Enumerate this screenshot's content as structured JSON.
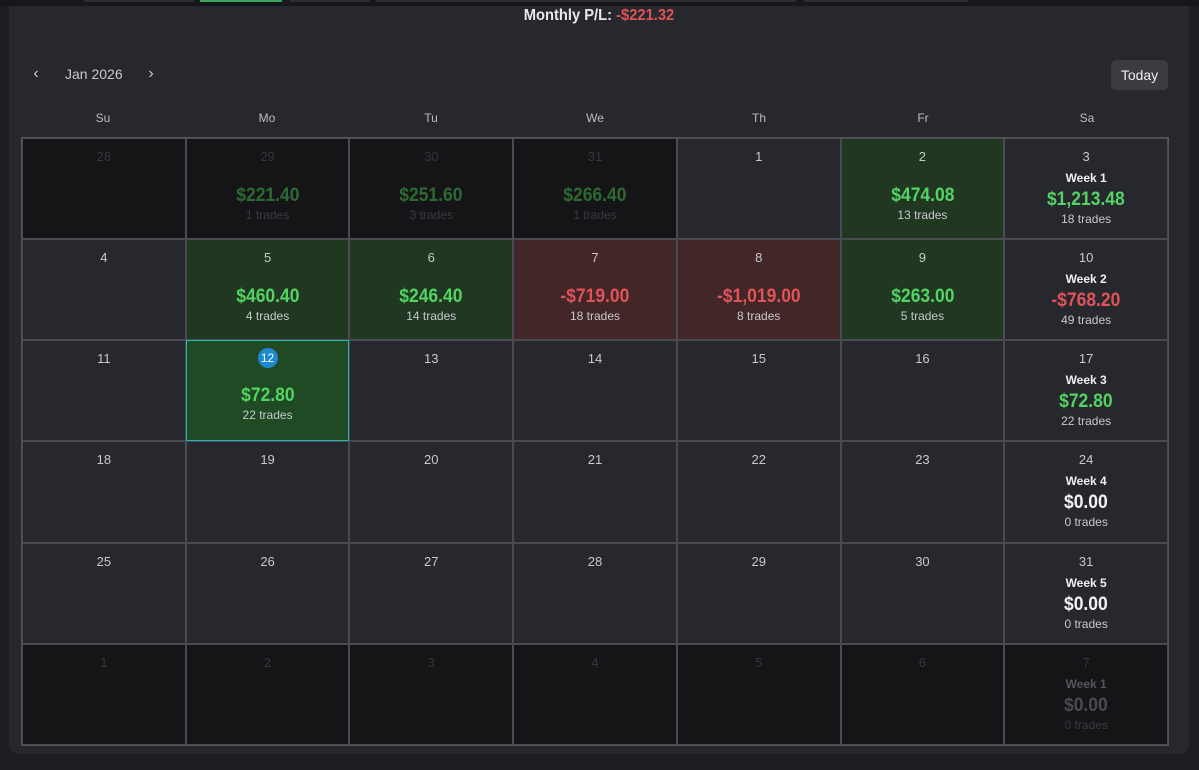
{
  "header": {
    "monthly_label": "Monthly P/L:",
    "monthly_value": "-$221.32"
  },
  "nav": {
    "prev": "‹",
    "next": "›",
    "month": "Jan 2026",
    "today": "Today"
  },
  "weekdays": [
    "Su",
    "Mo",
    "Tu",
    "We",
    "Th",
    "Fr",
    "Sa"
  ],
  "colors": {
    "positive": "#52d362",
    "negative": "#e05458",
    "today_ring": "#2ab3b8",
    "today_badge": "#1e88d0"
  },
  "weeks": [
    {
      "days": [
        {
          "date": "28",
          "other": true
        },
        {
          "date": "29",
          "other": true,
          "pnl": "$221.40",
          "trades": "1 trades",
          "tone": "pos"
        },
        {
          "date": "30",
          "other": true,
          "pnl": "$251.60",
          "trades": "3 trades",
          "tone": "pos"
        },
        {
          "date": "31",
          "other": true,
          "pnl": "$266.40",
          "trades": "1 trades",
          "tone": "pos"
        },
        {
          "date": "1"
        },
        {
          "date": "2",
          "pnl": "$474.08",
          "trades": "13 trades",
          "tone": "pos",
          "bg": "green"
        },
        {
          "date": "3",
          "summary": {
            "label": "Week 1",
            "pnl": "$1,213.48",
            "trades": "18 trades",
            "tone": "pos"
          }
        }
      ]
    },
    {
      "days": [
        {
          "date": "4"
        },
        {
          "date": "5",
          "pnl": "$460.40",
          "trades": "4 trades",
          "tone": "pos",
          "bg": "green"
        },
        {
          "date": "6",
          "pnl": "$246.40",
          "trades": "14 trades",
          "tone": "pos",
          "bg": "green"
        },
        {
          "date": "7",
          "pnl": "-$719.00",
          "trades": "18 trades",
          "tone": "neg",
          "bg": "red"
        },
        {
          "date": "8",
          "pnl": "-$1,019.00",
          "trades": "8 trades",
          "tone": "neg",
          "bg": "red"
        },
        {
          "date": "9",
          "pnl": "$263.00",
          "trades": "5 trades",
          "tone": "pos",
          "bg": "green"
        },
        {
          "date": "10",
          "summary": {
            "label": "Week 2",
            "pnl": "-$768.20",
            "trades": "49 trades",
            "tone": "neg"
          }
        }
      ]
    },
    {
      "days": [
        {
          "date": "11"
        },
        {
          "date": "12",
          "today": true,
          "pnl": "$72.80",
          "trades": "22 trades",
          "tone": "pos"
        },
        {
          "date": "13"
        },
        {
          "date": "14"
        },
        {
          "date": "15"
        },
        {
          "date": "16"
        },
        {
          "date": "17",
          "summary": {
            "label": "Week 3",
            "pnl": "$72.80",
            "trades": "22 trades",
            "tone": "pos"
          }
        }
      ]
    },
    {
      "days": [
        {
          "date": "18"
        },
        {
          "date": "19"
        },
        {
          "date": "20"
        },
        {
          "date": "21"
        },
        {
          "date": "22"
        },
        {
          "date": "23"
        },
        {
          "date": "24",
          "summary": {
            "label": "Week 4",
            "pnl": "$0.00",
            "trades": "0 trades",
            "tone": "zero"
          }
        }
      ]
    },
    {
      "days": [
        {
          "date": "25"
        },
        {
          "date": "26"
        },
        {
          "date": "27"
        },
        {
          "date": "28"
        },
        {
          "date": "29"
        },
        {
          "date": "30"
        },
        {
          "date": "31",
          "summary": {
            "label": "Week 5",
            "pnl": "$0.00",
            "trades": "0 trades",
            "tone": "zero"
          }
        }
      ]
    },
    {
      "days": [
        {
          "date": "1",
          "other": true
        },
        {
          "date": "2",
          "other": true
        },
        {
          "date": "3",
          "other": true
        },
        {
          "date": "4",
          "other": true
        },
        {
          "date": "5",
          "other": true
        },
        {
          "date": "6",
          "other": true
        },
        {
          "date": "7",
          "other": true,
          "summary": {
            "label": "Week 1",
            "pnl": "$0.00",
            "trades": "0 trades",
            "tone": "zero"
          }
        }
      ]
    }
  ]
}
